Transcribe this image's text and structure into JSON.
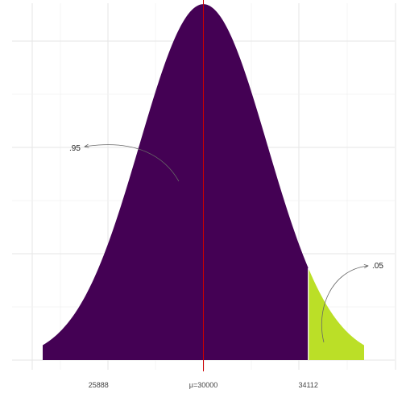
{
  "chart_data": {
    "type": "area",
    "distribution": "normal",
    "mean": 30000,
    "sd": 2500,
    "x_range": [
      22500,
      37500
    ],
    "y_range_density": [
      0,
      0.00016
    ],
    "critical_value": 34112,
    "x_tick_labels": [
      {
        "value": 25888,
        "label": "25888"
      },
      {
        "value": 30000,
        "label": "μ=30000"
      },
      {
        "value": 34112,
        "label": "34112"
      }
    ],
    "regions": [
      {
        "range": "below critical value",
        "fill": "#440154",
        "label": ".95"
      },
      {
        "range": "above critical value",
        "fill": "#BBDF27",
        "label": ".05"
      }
    ],
    "mean_line_color": "#CC0000",
    "grid": true,
    "legend": "none"
  }
}
